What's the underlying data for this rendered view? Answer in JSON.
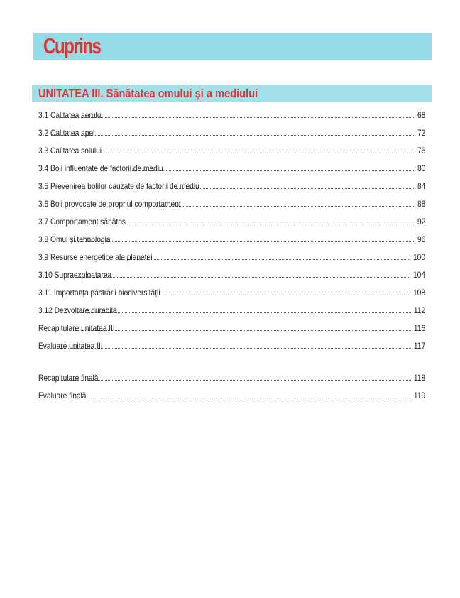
{
  "header": {
    "title": "Cuprins",
    "banner_color": "#94dde8",
    "title_color": "#e5312f"
  },
  "unit": {
    "title": "UNITATEA III. Sănătatea omului și a mediului"
  },
  "entries": [
    {
      "label": "3.1 Calitatea aerului",
      "page": "68"
    },
    {
      "label": "3.2 Calitatea apei",
      "page": "72"
    },
    {
      "label": "3.3 Calitatea solului",
      "page": "76"
    },
    {
      "label": "3.4 Boli influențate de factorii de mediu",
      "page": "80"
    },
    {
      "label": "3.5 Prevenirea bolilor cauzate de factorii de mediu",
      "page": "84"
    },
    {
      "label": "3.6 Boli provocate de propriul comportament",
      "page": "88"
    },
    {
      "label": "3.7 Comportament sănătos",
      "page": "92"
    },
    {
      "label": "3.8 Omul și tehnologia",
      "page": "96"
    },
    {
      "label": "3.9 Resurse energetice ale planetei",
      "page": "100"
    },
    {
      "label": "3.10 Supraexploatarea",
      "page": "104"
    },
    {
      "label": "3.11 Importanța păstrării biodiversității",
      "page": "108"
    },
    {
      "label": "3.12 Dezvoltare durabilă",
      "page": "112"
    },
    {
      "label": "Recapitulare unitatea III",
      "page": "116"
    },
    {
      "label": "Evaluare unitatea III",
      "page": "117"
    }
  ],
  "final_entries": [
    {
      "label": "Recapitulare finală",
      "page": "118"
    },
    {
      "label": "Evaluare finală",
      "page": "119"
    }
  ]
}
